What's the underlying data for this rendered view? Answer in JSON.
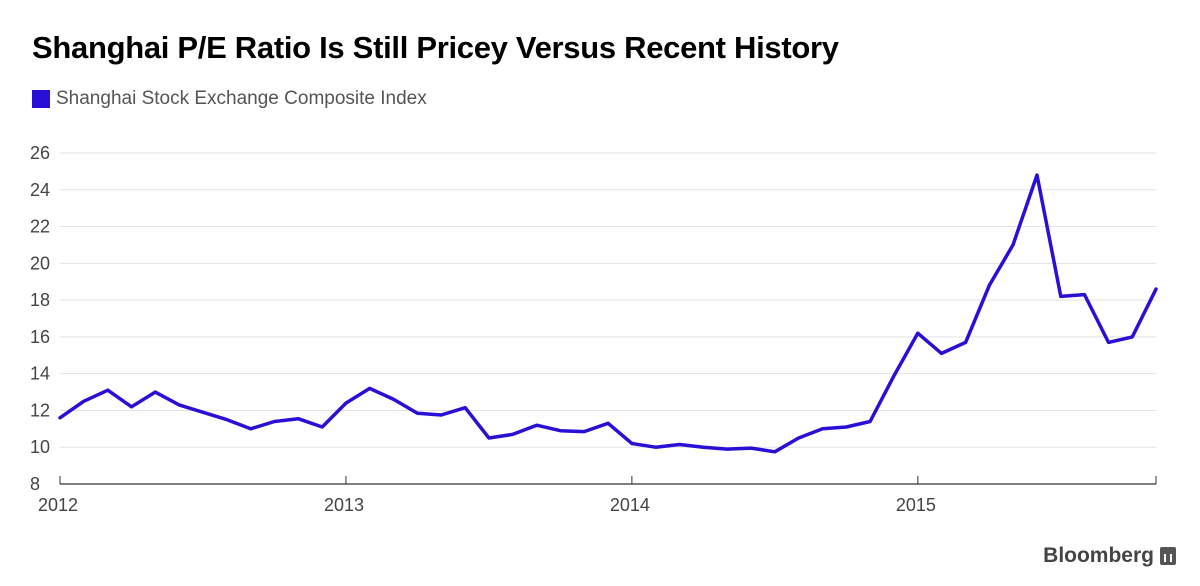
{
  "title": "Shanghai P/E Ratio Is Still Pricey Versus Recent History",
  "legend": {
    "label": "Shanghai Stock Exchange Composite Index",
    "color": "#2a0fd6"
  },
  "brand": {
    "name": "Bloomberg",
    "icon": "bloomberg-terminal-icon"
  },
  "colors": {
    "line": "#2a0fd6",
    "grid": "#e3e3e3",
    "axis": "#333333"
  },
  "chart_data": {
    "type": "line",
    "title": "Shanghai P/E Ratio Is Still Pricey Versus Recent History",
    "xlabel": "",
    "ylabel": "",
    "xlim": [
      2012.0,
      2015.833
    ],
    "ylim": [
      8,
      26
    ],
    "yticks": [
      8,
      10,
      12,
      14,
      16,
      18,
      20,
      22,
      24,
      26
    ],
    "xticks": [
      2012,
      2013,
      2014,
      2015
    ],
    "xtick_labels": [
      "2012",
      "2013",
      "2014",
      "2015"
    ],
    "grid": true,
    "legend_position": "top-left",
    "series": [
      {
        "name": "Shanghai Stock Exchange Composite Index",
        "x": [
          2012.0,
          2012.083,
          2012.167,
          2012.25,
          2012.333,
          2012.417,
          2012.5,
          2012.583,
          2012.667,
          2012.75,
          2012.833,
          2012.917,
          2013.0,
          2013.083,
          2013.167,
          2013.25,
          2013.333,
          2013.417,
          2013.5,
          2013.583,
          2013.667,
          2013.75,
          2013.833,
          2013.917,
          2014.0,
          2014.083,
          2014.167,
          2014.25,
          2014.333,
          2014.417,
          2014.5,
          2014.583,
          2014.667,
          2014.75,
          2014.833,
          2014.917,
          2015.0,
          2015.083,
          2015.167,
          2015.25,
          2015.333,
          2015.417,
          2015.5,
          2015.583,
          2015.667,
          2015.75,
          2015.833
        ],
        "values": [
          11.6,
          12.5,
          13.1,
          12.2,
          13.0,
          12.3,
          11.9,
          11.5,
          11.0,
          11.4,
          11.55,
          11.1,
          12.4,
          13.2,
          12.6,
          11.85,
          11.75,
          12.15,
          10.5,
          10.7,
          11.2,
          10.9,
          10.85,
          11.3,
          10.2,
          10.0,
          10.15,
          10.0,
          9.9,
          9.95,
          9.75,
          10.5,
          11.0,
          11.1,
          11.4,
          13.9,
          16.2,
          15.1,
          15.7,
          18.8,
          21.0,
          24.8,
          18.2,
          18.3,
          15.7,
          16.0,
          18.6
        ]
      }
    ]
  }
}
